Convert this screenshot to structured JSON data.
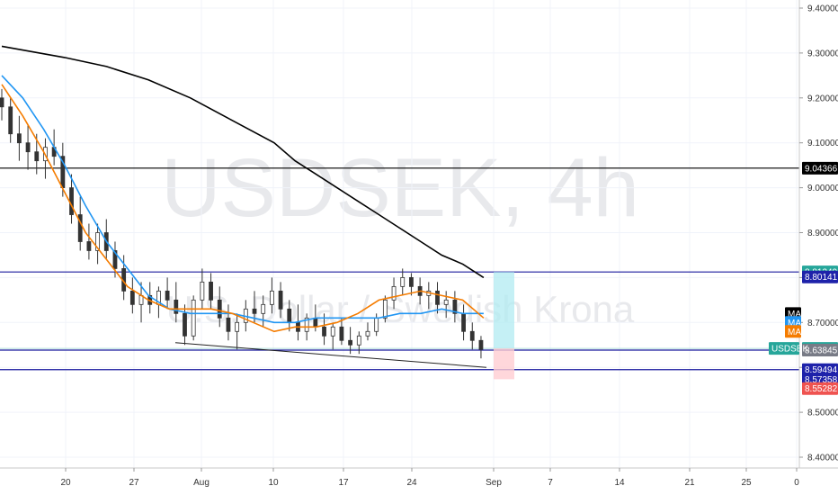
{
  "watermark": {
    "symbol": "USDSEK, 4h",
    "description": "U.S. Dollar / Swedish Krona"
  },
  "chart_data": {
    "type": "candlestick",
    "symbol": "USDSEK",
    "timeframe": "4h",
    "ylim": [
      8.4,
      9.4
    ],
    "y_ticks": [
      "9.40000",
      "9.30000",
      "9.20000",
      "9.10000",
      "9.00000",
      "8.90000",
      "8.80000",
      "8.70000",
      "8.60000",
      "8.50000",
      "8.40000"
    ],
    "x_ticks": [
      "20",
      "27",
      "Aug",
      "10",
      "17",
      "24",
      "Sep",
      "7",
      "14",
      "21",
      "25",
      "0"
    ],
    "legend": [
      "MA",
      "MA",
      "MA"
    ],
    "horizontal_levels": [
      {
        "label": "9.04366",
        "value": 9.04366,
        "color": "#000000"
      },
      {
        "label": "8.81249",
        "value": 8.81249,
        "color": "#1a1a9e"
      },
      {
        "label": "8.63845",
        "value": 8.63845,
        "color": "#1a1a9e"
      },
      {
        "label": "8.59494",
        "value": 8.59494,
        "color": "#1a1a9e"
      }
    ],
    "price_tags": [
      {
        "label": "9.04366",
        "value": 9.04366,
        "color": "#000000"
      },
      {
        "label": "8.81249",
        "value": 8.81249,
        "color": "#26a69a"
      },
      {
        "label": "8.80141",
        "value": 8.80141,
        "color": "#1e22aa"
      },
      {
        "label": "8.64224",
        "value": 8.64224,
        "color": "#26a69a"
      },
      {
        "label": "8.63845",
        "value": 8.63845,
        "color": "#787b86"
      },
      {
        "label": "8.59494",
        "value": 8.59494,
        "color": "#1e22aa"
      },
      {
        "label": "8.57358",
        "value": 8.57358,
        "color": "#1e22aa"
      },
      {
        "label": "8.55282",
        "value": 8.55282,
        "color": "#ef5350"
      }
    ],
    "ma_tags": [
      {
        "label": "MA",
        "value": 8.72,
        "color": "#000000"
      },
      {
        "label": "MA",
        "value": 8.7,
        "color": "#2196f3"
      },
      {
        "label": "MA",
        "value": 8.68,
        "color": "#f57c00"
      }
    ],
    "symbol_tag": {
      "label": "USDSEK",
      "value": 8.64224,
      "color": "#26a69a"
    },
    "series": [
      {
        "color": "#000000",
        "points": [
          [
            1,
            9.315
          ],
          [
            4,
            9.29
          ],
          [
            6,
            9.27
          ],
          [
            8,
            9.24
          ],
          [
            10,
            9.2
          ],
          [
            12,
            9.15
          ],
          [
            14,
            9.1
          ],
          [
            15,
            9.06
          ],
          [
            16,
            9.03
          ],
          [
            17,
            9.0
          ],
          [
            18,
            8.97
          ],
          [
            19,
            8.94
          ],
          [
            20,
            8.91
          ],
          [
            21,
            8.88
          ],
          [
            22,
            8.85
          ],
          [
            23,
            8.83
          ],
          [
            24,
            8.8
          ]
        ]
      },
      {
        "color": "#2196f3",
        "points": [
          [
            1,
            9.25
          ],
          [
            2,
            9.2
          ],
          [
            3,
            9.13
          ],
          [
            4,
            9.05
          ],
          [
            5,
            8.96
          ],
          [
            6,
            8.88
          ],
          [
            7,
            8.82
          ],
          [
            8,
            8.76
          ],
          [
            9,
            8.73
          ],
          [
            10,
            8.72
          ],
          [
            11,
            8.72
          ],
          [
            12,
            8.72
          ],
          [
            13,
            8.71
          ],
          [
            14,
            8.7
          ],
          [
            15,
            8.7
          ],
          [
            16,
            8.71
          ],
          [
            17,
            8.71
          ],
          [
            18,
            8.71
          ],
          [
            19,
            8.71
          ],
          [
            20,
            8.72
          ],
          [
            21,
            8.72
          ],
          [
            22,
            8.73
          ],
          [
            23,
            8.72
          ],
          [
            24,
            8.72
          ]
        ]
      },
      {
        "color": "#f57c00",
        "points": [
          [
            1,
            9.23
          ],
          [
            2,
            9.16
          ],
          [
            3,
            9.08
          ],
          [
            4,
            8.99
          ],
          [
            5,
            8.9
          ],
          [
            6,
            8.84
          ],
          [
            7,
            8.78
          ],
          [
            8,
            8.75
          ],
          [
            9,
            8.73
          ],
          [
            10,
            8.73
          ],
          [
            11,
            8.73
          ],
          [
            12,
            8.72
          ],
          [
            13,
            8.7
          ],
          [
            14,
            8.68
          ],
          [
            15,
            8.69
          ],
          [
            16,
            8.69
          ],
          [
            17,
            8.7
          ],
          [
            18,
            8.72
          ],
          [
            19,
            8.75
          ],
          [
            20,
            8.76
          ],
          [
            21,
            8.77
          ],
          [
            22,
            8.76
          ],
          [
            23,
            8.75
          ],
          [
            24,
            8.71
          ]
        ]
      }
    ],
    "candles": [
      [
        1,
        9.2,
        9.22,
        9.15,
        9.18
      ],
      [
        1.3,
        9.18,
        9.2,
        9.1,
        9.12
      ],
      [
        1.6,
        9.12,
        9.16,
        9.06,
        9.1
      ],
      [
        1.9,
        9.1,
        9.14,
        9.04,
        9.08
      ],
      [
        2.2,
        9.08,
        9.12,
        9.03,
        9.06
      ],
      [
        2.5,
        9.06,
        9.11,
        9.02,
        9.09
      ],
      [
        2.8,
        9.09,
        9.13,
        9.05,
        9.07
      ],
      [
        3.1,
        9.07,
        9.1,
        8.98,
        9.0
      ],
      [
        3.4,
        9.0,
        9.03,
        8.92,
        8.94
      ],
      [
        3.7,
        8.94,
        8.98,
        8.86,
        8.88
      ],
      [
        4.0,
        8.88,
        8.92,
        8.84,
        8.86
      ],
      [
        4.3,
        8.86,
        8.92,
        8.83,
        8.9
      ],
      [
        4.6,
        8.9,
        8.93,
        8.84,
        8.86
      ],
      [
        4.9,
        8.86,
        8.88,
        8.8,
        8.82
      ],
      [
        5.2,
        8.82,
        8.85,
        8.75,
        8.77
      ],
      [
        5.5,
        8.77,
        8.8,
        8.72,
        8.74
      ],
      [
        5.8,
        8.74,
        8.79,
        8.7,
        8.76
      ],
      [
        6.1,
        8.76,
        8.79,
        8.72,
        8.74
      ],
      [
        6.4,
        8.74,
        8.78,
        8.71,
        8.77
      ],
      [
        6.7,
        8.77,
        8.8,
        8.73,
        8.75
      ],
      [
        7.0,
        8.75,
        8.79,
        8.7,
        8.72
      ],
      [
        7.3,
        8.72,
        8.74,
        8.65,
        8.67
      ],
      [
        7.6,
        8.67,
        8.76,
        8.66,
        8.75
      ],
      [
        7.9,
        8.75,
        8.82,
        8.73,
        8.79
      ],
      [
        8.2,
        8.79,
        8.81,
        8.73,
        8.75
      ],
      [
        8.5,
        8.75,
        8.78,
        8.69,
        8.71
      ],
      [
        8.8,
        8.71,
        8.74,
        8.66,
        8.68
      ],
      [
        9.1,
        8.68,
        8.72,
        8.64,
        8.7
      ],
      [
        9.4,
        8.7,
        8.75,
        8.68,
        8.73
      ],
      [
        9.7,
        8.73,
        8.77,
        8.7,
        8.72
      ],
      [
        10.0,
        8.72,
        8.76,
        8.69,
        8.74
      ],
      [
        10.3,
        8.74,
        8.8,
        8.72,
        8.77
      ],
      [
        10.6,
        8.77,
        8.79,
        8.71,
        8.73
      ],
      [
        10.9,
        8.73,
        8.75,
        8.68,
        8.7
      ],
      [
        11.2,
        8.7,
        8.74,
        8.66,
        8.68
      ],
      [
        11.5,
        8.68,
        8.72,
        8.66,
        8.71
      ],
      [
        11.8,
        8.71,
        8.74,
        8.68,
        8.69
      ],
      [
        12.1,
        8.69,
        8.72,
        8.65,
        8.67
      ],
      [
        12.4,
        8.67,
        8.7,
        8.64,
        8.69
      ],
      [
        12.7,
        8.69,
        8.71,
        8.65,
        8.66
      ],
      [
        13.0,
        8.66,
        8.69,
        8.63,
        8.65
      ],
      [
        13.3,
        8.65,
        8.68,
        8.63,
        8.67
      ],
      [
        13.6,
        8.67,
        8.7,
        8.66,
        8.68
      ],
      [
        13.9,
        8.68,
        8.72,
        8.67,
        8.71
      ],
      [
        14.2,
        8.71,
        8.76,
        8.7,
        8.75
      ],
      [
        14.5,
        8.75,
        8.8,
        8.73,
        8.78
      ],
      [
        14.8,
        8.78,
        8.82,
        8.76,
        8.8
      ],
      [
        15.1,
        8.8,
        8.81,
        8.76,
        8.78
      ],
      [
        15.4,
        8.78,
        8.8,
        8.74,
        8.76
      ],
      [
        15.7,
        8.76,
        8.79,
        8.73,
        8.77
      ],
      [
        16.0,
        8.77,
        8.79,
        8.72,
        8.74
      ],
      [
        16.3,
        8.74,
        8.77,
        8.71,
        8.75
      ],
      [
        16.6,
        8.75,
        8.77,
        8.7,
        8.72
      ],
      [
        16.9,
        8.72,
        8.74,
        8.66,
        8.68
      ],
      [
        17.2,
        8.68,
        8.7,
        8.64,
        8.66
      ],
      [
        17.5,
        8.66,
        8.67,
        8.62,
        8.64
      ]
    ],
    "position_box": {
      "entry": 8.64224,
      "target": 8.81249,
      "stop": 8.57358
    }
  }
}
